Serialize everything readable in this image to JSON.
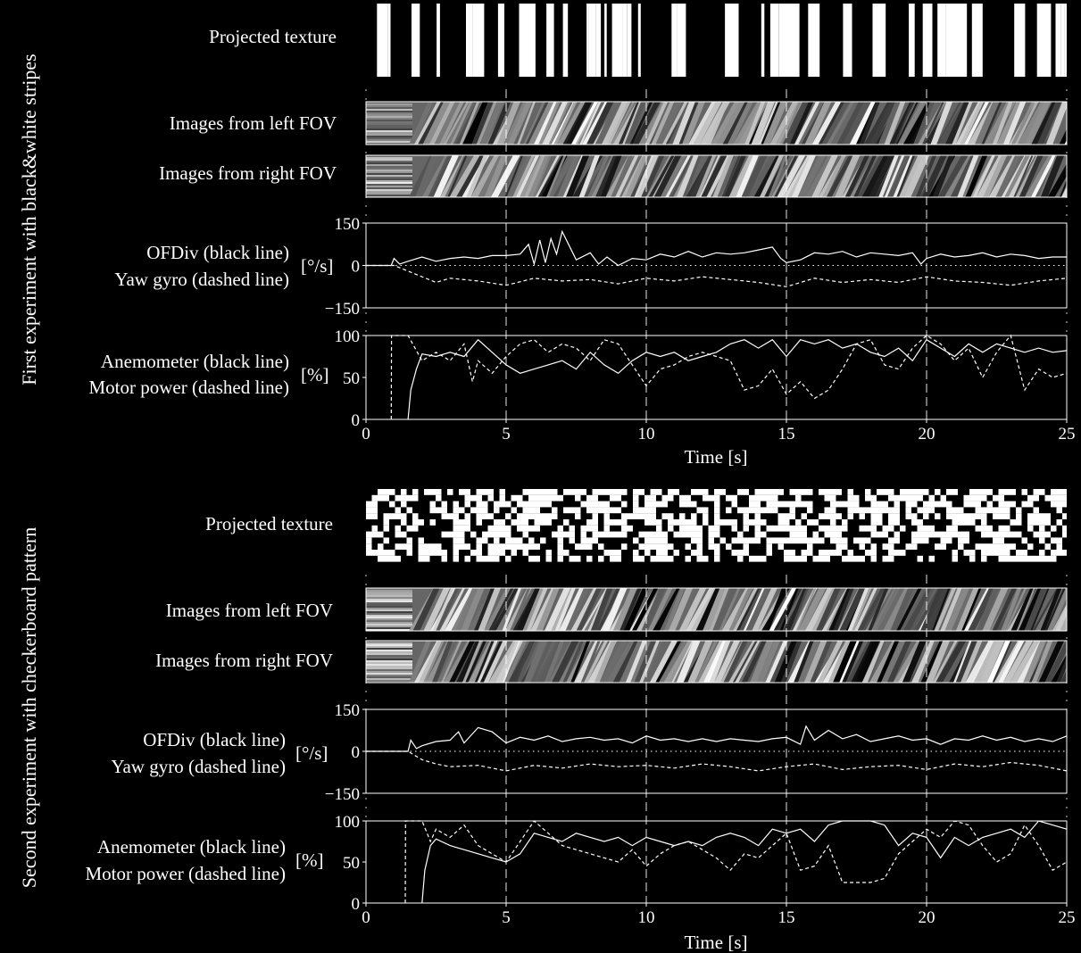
{
  "experiments": [
    {
      "side_label": "First experiment with black&white stripes",
      "texture_label": "Projected texture",
      "texture_kind": "stripes",
      "left_fov_label": "Images from left FOV",
      "right_fov_label": "Images from right FOV",
      "rate_label_1": "OFDiv (black line)",
      "rate_label_2": "Yaw gyro (dashed line)",
      "rate_unit": "[°/s]",
      "power_label_1": "Anemometer (black line)",
      "power_label_2": "Motor power (dashed line)",
      "power_unit": "[%]",
      "xlabel": "Time [s]"
    },
    {
      "side_label": "Second experiment with checkerboard pattern",
      "texture_label": "Projected texture",
      "texture_kind": "checkerboard",
      "left_fov_label": "Images from left FOV",
      "right_fov_label": "Images from right FOV",
      "rate_label_1": "OFDiv (black line)",
      "rate_label_2": "Yaw gyro (dashed line)",
      "rate_unit": "[°/s]",
      "power_label_1": "Anemometer (black line)",
      "power_label_2": "Motor power (dashed line)",
      "power_unit": "[%]",
      "xlabel": "Time [s]"
    }
  ],
  "colors": {
    "background": "#000000",
    "foreground": "#ffffff"
  },
  "chart_data": [
    {
      "type": "line",
      "panel": "exp1-rate",
      "xlim": [
        0,
        25
      ],
      "ylim": [
        -150,
        150
      ],
      "yticks": [
        150,
        0,
        -150
      ],
      "vgrid": [
        5,
        10,
        15,
        20
      ],
      "series": [
        {
          "name": "OFDiv",
          "style": "solid",
          "x": [
            0,
            0.9,
            1.0,
            1.2,
            1.5,
            2,
            2.5,
            3,
            3.5,
            4,
            4.5,
            5,
            5.5,
            5.8,
            6.0,
            6.2,
            6.4,
            6.6,
            6.8,
            7.0,
            7.2,
            7.5,
            8,
            8.3,
            8.6,
            9,
            9.5,
            10,
            10.5,
            11,
            11.5,
            12,
            12.5,
            13,
            13.5,
            14,
            14.5,
            14.8,
            15,
            15.5,
            16,
            16.5,
            17,
            17.5,
            18,
            18.5,
            19,
            19.5,
            19.8,
            20,
            20.5,
            21,
            21.5,
            22,
            22.5,
            23,
            23.5,
            24,
            24.5,
            25
          ],
          "y": [
            0,
            0,
            25,
            5,
            15,
            30,
            15,
            25,
            30,
            25,
            35,
            35,
            40,
            75,
            5,
            90,
            10,
            95,
            40,
            120,
            80,
            20,
            45,
            5,
            30,
            0,
            25,
            20,
            40,
            30,
            50,
            30,
            45,
            40,
            45,
            55,
            65,
            25,
            10,
            20,
            45,
            40,
            50,
            30,
            45,
            40,
            35,
            45,
            5,
            25,
            40,
            30,
            35,
            45,
            30,
            40,
            35,
            25,
            30,
            30
          ]
        },
        {
          "name": "Yaw gyro",
          "style": "dashed",
          "x": [
            0,
            1,
            1.5,
            2,
            2.5,
            3,
            4,
            5,
            6,
            7,
            8,
            9,
            10,
            11,
            12,
            13,
            14,
            15,
            16,
            17,
            18,
            19,
            20,
            21,
            22,
            23,
            24,
            25
          ],
          "y": [
            0,
            0,
            -20,
            -40,
            -60,
            -45,
            -55,
            -70,
            -45,
            -55,
            -50,
            -65,
            -45,
            -55,
            -40,
            -50,
            -60,
            -75,
            -45,
            -60,
            -50,
            -60,
            -40,
            -55,
            -60,
            -70,
            -55,
            -45
          ]
        }
      ]
    },
    {
      "type": "line",
      "panel": "exp1-power",
      "xlim": [
        0,
        25
      ],
      "ylim": [
        0,
        100
      ],
      "yticks": [
        100,
        50,
        0
      ],
      "xticks": [
        0,
        5,
        10,
        15,
        20,
        25
      ],
      "xlabel": "Time [s]",
      "vgrid": [
        5,
        10,
        15,
        20
      ],
      "series": [
        {
          "name": "Anemometer",
          "style": "solid",
          "x": [
            1.5,
            1.6,
            1.8,
            2,
            2.5,
            3,
            3.5,
            4,
            4.5,
            5,
            5.5,
            6,
            6.5,
            7,
            7.5,
            8,
            8.5,
            9,
            9.5,
            10,
            10.5,
            11,
            11.5,
            12,
            12.5,
            13,
            13.5,
            14,
            14.5,
            15,
            15.5,
            16,
            16.5,
            17,
            17.5,
            18,
            18.5,
            19,
            19.5,
            20,
            20.5,
            21,
            21.5,
            22,
            22.5,
            23,
            23.5,
            24,
            24.5,
            25
          ],
          "y": [
            0,
            35,
            60,
            78,
            75,
            80,
            75,
            95,
            80,
            65,
            55,
            60,
            65,
            70,
            60,
            80,
            65,
            55,
            70,
            80,
            75,
            80,
            70,
            75,
            80,
            90,
            95,
            85,
            95,
            75,
            95,
            90,
            95,
            85,
            90,
            80,
            75,
            85,
            70,
            95,
            85,
            75,
            90,
            80,
            90,
            85,
            80,
            85,
            80,
            82
          ]
        },
        {
          "name": "Motor power",
          "style": "dashed",
          "x": [
            0.9,
            0.91,
            1.0,
            1.5,
            2,
            2.5,
            3,
            3.5,
            3.8,
            4,
            4.5,
            5,
            5.5,
            6,
            6.5,
            7,
            7.5,
            8,
            8.5,
            9,
            9.5,
            10,
            10.5,
            11,
            11.5,
            12,
            12.5,
            13,
            13.5,
            14,
            14.5,
            15,
            15.5,
            16,
            16.5,
            17,
            17.5,
            18,
            18.5,
            19,
            19.5,
            20,
            20.5,
            21,
            21.5,
            22,
            22.5,
            23,
            23.5,
            24,
            24.5,
            25
          ],
          "y": [
            0,
            100,
            100,
            100,
            70,
            80,
            70,
            90,
            45,
            70,
            55,
            75,
            90,
            95,
            80,
            90,
            85,
            70,
            95,
            90,
            65,
            40,
            60,
            65,
            75,
            80,
            75,
            70,
            35,
            40,
            60,
            30,
            45,
            25,
            35,
            60,
            90,
            95,
            65,
            60,
            85,
            100,
            90,
            70,
            85,
            50,
            80,
            100,
            35,
            60,
            50,
            55
          ]
        }
      ]
    },
    {
      "type": "line",
      "panel": "exp2-rate",
      "xlim": [
        0,
        25
      ],
      "ylim": [
        -150,
        150
      ],
      "yticks": [
        150,
        0,
        -150
      ],
      "vgrid": [
        5,
        10,
        15,
        20
      ],
      "series": [
        {
          "name": "OFDiv",
          "style": "solid",
          "x": [
            0,
            1.5,
            1.6,
            1.8,
            2,
            2.5,
            3,
            3.3,
            3.5,
            4,
            4.5,
            5,
            5.5,
            6,
            6.5,
            7,
            7.5,
            8,
            8.5,
            9,
            9.5,
            10,
            10.5,
            11,
            11.5,
            12,
            12.5,
            13,
            13.5,
            14,
            14.5,
            15,
            15.5,
            15.7,
            16,
            16.5,
            17,
            17.5,
            18,
            18.5,
            19,
            19.5,
            20,
            20.5,
            21,
            21.5,
            22,
            22.5,
            23,
            23.5,
            24,
            24.5,
            25
          ],
          "y": [
            0,
            0,
            40,
            10,
            20,
            35,
            40,
            70,
            30,
            85,
            70,
            30,
            50,
            40,
            55,
            35,
            45,
            50,
            40,
            45,
            30,
            55,
            40,
            45,
            35,
            45,
            35,
            45,
            40,
            35,
            45,
            50,
            25,
            90,
            40,
            75,
            45,
            60,
            35,
            45,
            55,
            40,
            45,
            25,
            45,
            40,
            55,
            40,
            50,
            35,
            45,
            35,
            55
          ]
        },
        {
          "name": "Yaw gyro",
          "style": "dashed",
          "x": [
            0,
            1.5,
            2,
            2.5,
            3,
            4,
            5,
            6,
            7,
            8,
            9,
            10,
            11,
            12,
            13,
            14,
            15,
            16,
            17,
            18,
            19,
            20,
            21,
            22,
            23,
            24,
            25
          ],
          "y": [
            0,
            0,
            -30,
            -45,
            -55,
            -50,
            -70,
            -50,
            -60,
            -45,
            -55,
            -50,
            -60,
            -45,
            -55,
            -70,
            -55,
            -45,
            -65,
            -55,
            -50,
            -65,
            -45,
            -55,
            -40,
            -50,
            -70
          ]
        }
      ]
    },
    {
      "type": "line",
      "panel": "exp2-power",
      "xlim": [
        0,
        25
      ],
      "ylim": [
        0,
        100
      ],
      "yticks": [
        100,
        50,
        0
      ],
      "xticks": [
        0,
        5,
        10,
        15,
        20,
        25
      ],
      "xlabel": "Time [s]",
      "vgrid": [
        5,
        10,
        15,
        20
      ],
      "series": [
        {
          "name": "Anemometer",
          "style": "solid",
          "x": [
            2.0,
            2.1,
            2.3,
            2.5,
            3,
            3.5,
            4,
            4.5,
            5,
            5.5,
            6,
            6.5,
            7,
            7.5,
            8,
            8.5,
            9,
            9.5,
            10,
            10.5,
            11,
            11.5,
            12,
            12.5,
            13,
            13.5,
            14,
            14.5,
            15,
            15.5,
            16,
            16.5,
            17,
            17.5,
            18,
            18.5,
            19,
            19.5,
            20,
            20.5,
            21,
            21.5,
            22,
            22.5,
            23,
            23.5,
            24,
            24.5,
            25
          ],
          "y": [
            0,
            40,
            70,
            78,
            70,
            65,
            60,
            55,
            50,
            60,
            85,
            80,
            75,
            85,
            80,
            75,
            80,
            70,
            80,
            75,
            70,
            75,
            70,
            80,
            85,
            80,
            70,
            90,
            85,
            90,
            75,
            95,
            100,
            100,
            100,
            95,
            70,
            85,
            80,
            55,
            80,
            70,
            80,
            85,
            90,
            80,
            100,
            95,
            90
          ]
        },
        {
          "name": "Motor power",
          "style": "dashed",
          "x": [
            1.4,
            1.41,
            1.5,
            2,
            2.3,
            2.5,
            3,
            3.5,
            4,
            4.5,
            5,
            5.5,
            6,
            6.5,
            7,
            7.5,
            8,
            8.5,
            9,
            9.5,
            10,
            10.5,
            11,
            11.5,
            12,
            12.5,
            13,
            13.5,
            14,
            14.5,
            15,
            15.5,
            16,
            16.5,
            17,
            17.5,
            18,
            18.5,
            19,
            19.5,
            20,
            20.5,
            21,
            21.5,
            22,
            22.5,
            23,
            23.5,
            24,
            24.5,
            25
          ],
          "y": [
            0,
            100,
            100,
            100,
            75,
            90,
            80,
            95,
            70,
            60,
            50,
            75,
            100,
            85,
            70,
            65,
            60,
            55,
            50,
            65,
            45,
            60,
            70,
            75,
            65,
            55,
            40,
            60,
            55,
            70,
            85,
            40,
            45,
            70,
            25,
            25,
            25,
            30,
            60,
            75,
            90,
            80,
            100,
            95,
            70,
            50,
            60,
            95,
            70,
            40,
            50
          ]
        }
      ]
    }
  ]
}
